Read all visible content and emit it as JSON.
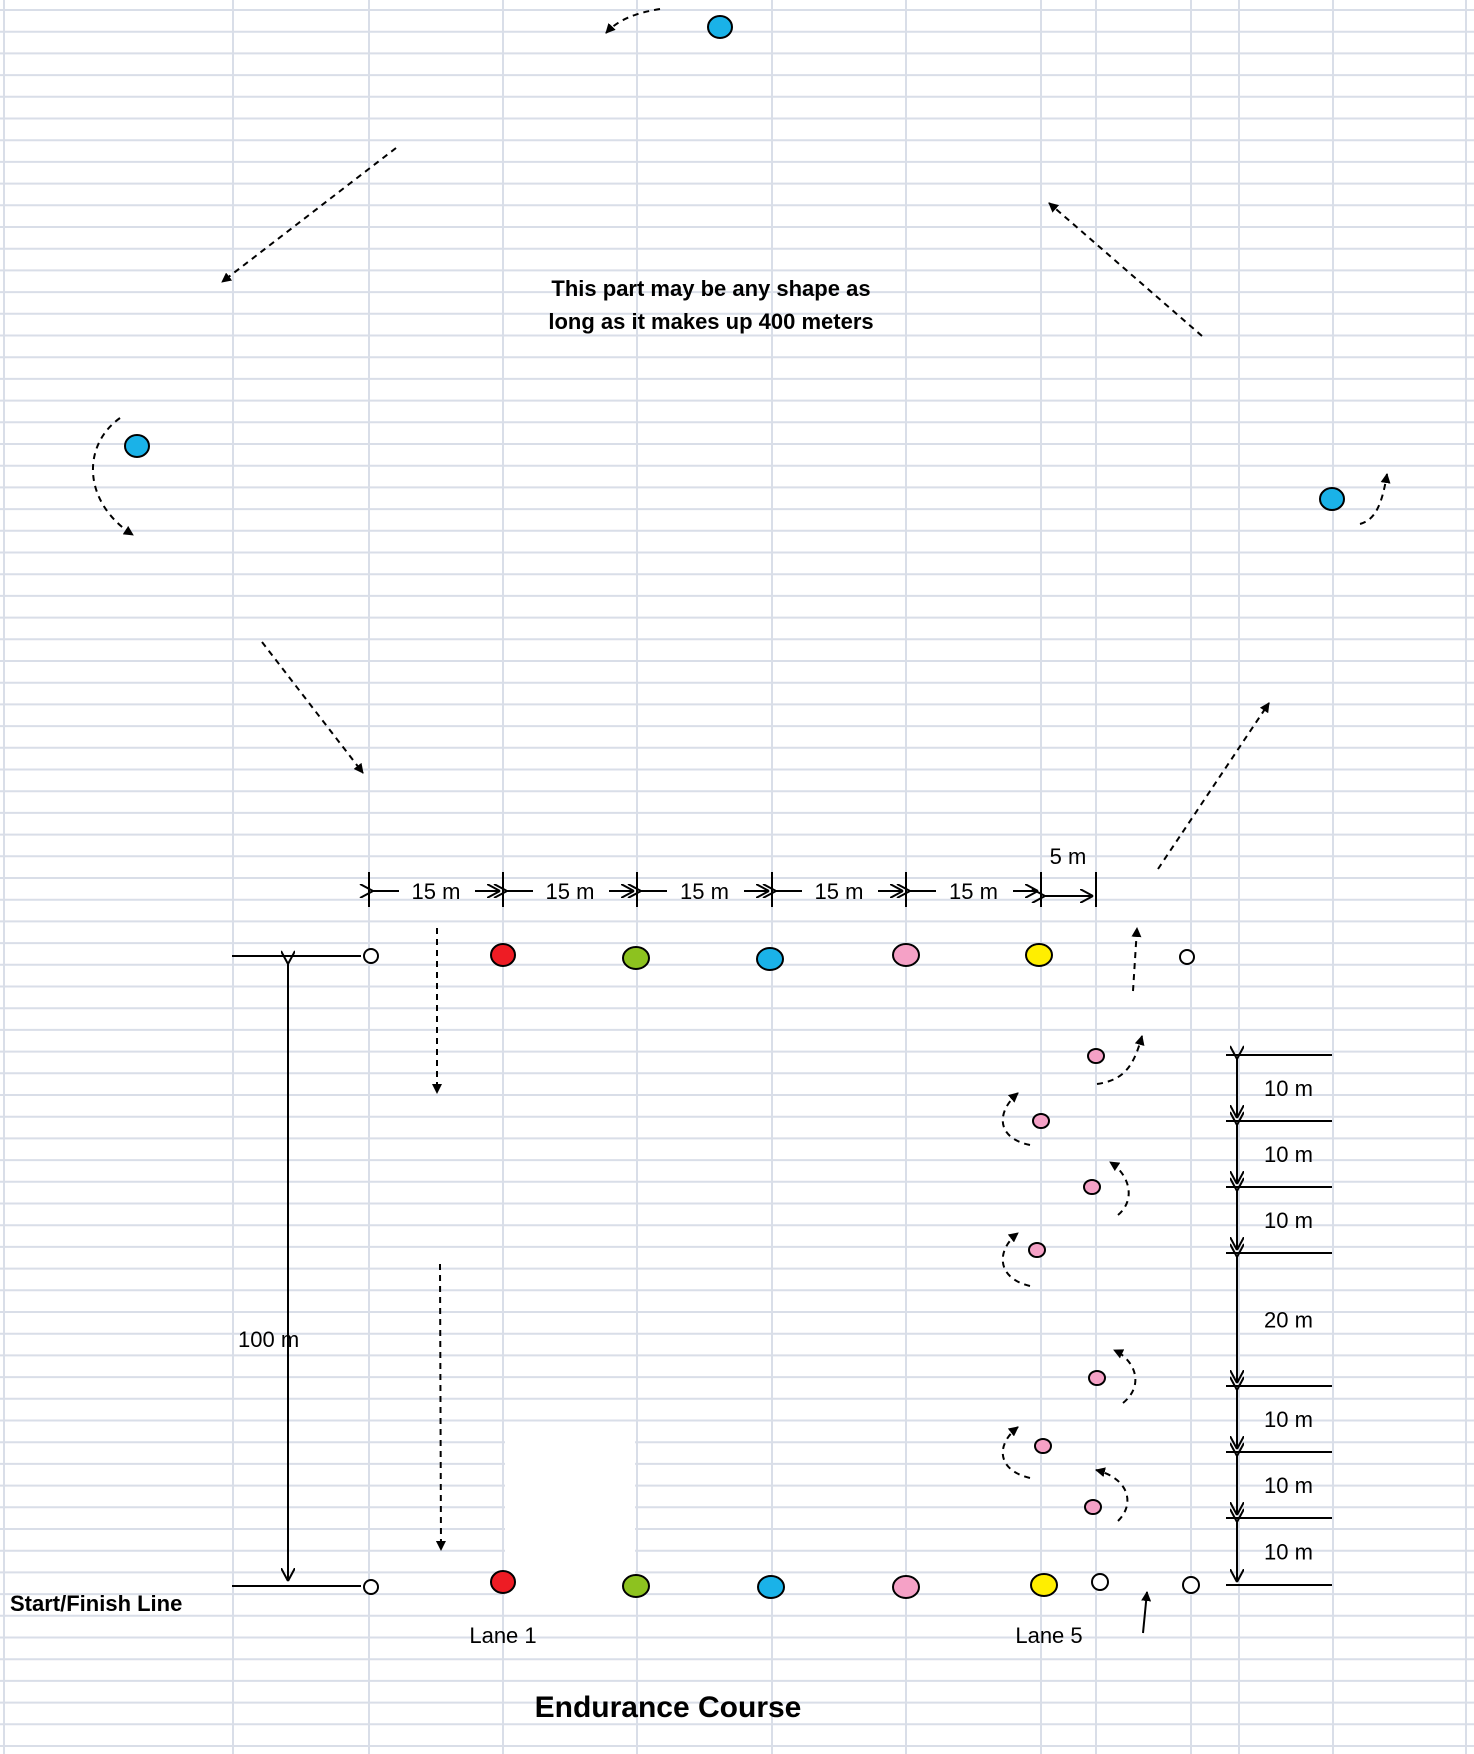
{
  "note": {
    "line1": "This part may be any shape as",
    "line2": "long as it makes up 400 meters"
  },
  "title": "Endurance Course",
  "start_finish_label": "Start/Finish Line",
  "lane_labels": {
    "first": "Lane 1",
    "last": "Lane 5"
  },
  "distance_100": "100 m",
  "spacing_labels": [
    "15 m",
    "15 m",
    "15 m",
    "15 m",
    "15 m"
  ],
  "spacing_5m": "5 m",
  "vertical_spacing": [
    "10 m",
    "10 m",
    "10 m",
    "20 m",
    "10 m",
    "10 m",
    "10 m"
  ],
  "colors": {
    "red": "#ee1c24",
    "green": "#8dc21f",
    "blue": "#1ab2e8",
    "pink": "#f5a1c6",
    "yellow": "#ffee00",
    "grid": "#d9dee8"
  }
}
